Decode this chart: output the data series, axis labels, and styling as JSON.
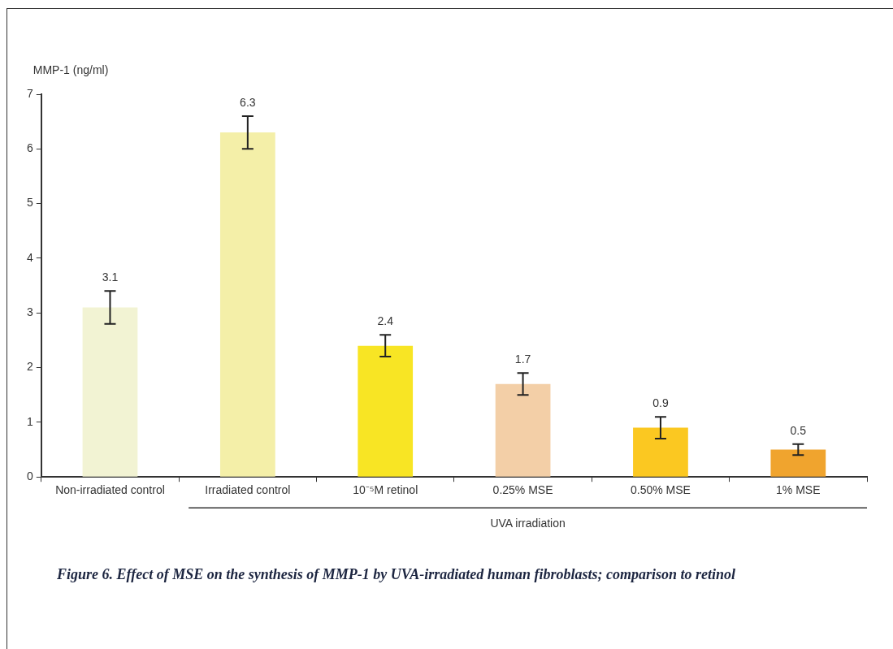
{
  "chart_data": {
    "type": "bar",
    "ylabel": "MMP-1 (ng/ml)",
    "categories": [
      "Non-irradiated control",
      "Irradiated control",
      "10⁻⁵M retinol",
      "0.25% MSE",
      "0.50% MSE",
      "1% MSE"
    ],
    "values": [
      3.1,
      6.3,
      2.4,
      1.7,
      0.9,
      0.5
    ],
    "colors": [
      "#f2f3d3",
      "#f4efa8",
      "#f8e524",
      "#f3cfa7",
      "#fbc821",
      "#f0a42e"
    ],
    "errors": [
      0.3,
      0.3,
      0.2,
      0.2,
      0.2,
      0.1
    ],
    "data_labels": true,
    "ylim": [
      0,
      7
    ],
    "yticks": [
      0,
      1,
      2,
      3,
      4,
      5,
      6,
      7
    ],
    "grid": false,
    "legend": false,
    "annotations": [
      "UVA irradiation",
      "Figure 6. Effect of MSE on the synthesis of MMP-1 by UVA-irradiated human fibroblasts; comparison to retinol"
    ]
  }
}
